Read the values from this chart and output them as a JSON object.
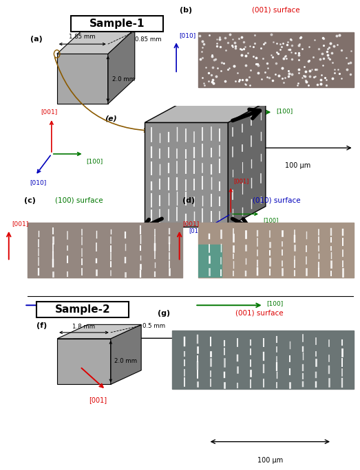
{
  "background": "#ffffff",
  "sample1_label": "Sample-1",
  "sample2_label": "Sample-2",
  "dim1_w": "1.85 mm",
  "dim1_d": "0.85 mm",
  "dim1_h": "2.0 mm",
  "dim2_w": "1.8 mm",
  "dim2_d": "0.5 mm",
  "dim2_h": "2.0 mm",
  "surface_b": "(001) surface",
  "surface_c": "(100) surface",
  "surface_d": "(010) surface",
  "surface_g": "(001) surface",
  "scale_label": "100 μm",
  "micro_bg_b": [
    0.5,
    0.44,
    0.42
  ],
  "micro_bg_c": [
    0.58,
    0.53,
    0.5
  ],
  "micro_bg_d": [
    0.65,
    0.58,
    0.52
  ],
  "micro_bg_g": [
    0.42,
    0.46,
    0.46
  ],
  "cube1_face": "#a8a8a8",
  "cube1_right": "#787878",
  "cube1_top": "#c8c8c8",
  "cube_e_front": "#909090",
  "cube_e_right": "#686868",
  "cube_e_top": "#b8b8b8",
  "teal_color": "#5a9a8a",
  "brown_color": "#8B5A00",
  "col_001": "#dd0000",
  "col_010": "#0000bb",
  "col_100": "#007700"
}
